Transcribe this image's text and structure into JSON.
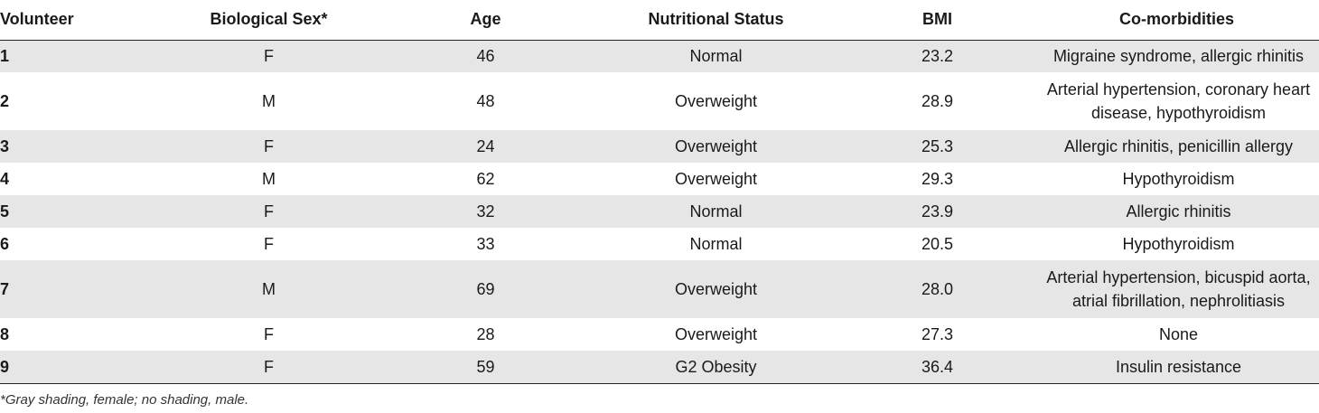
{
  "table": {
    "headers": [
      "Volunteer",
      "Biological Sex*",
      "Age",
      "Nutritional Status",
      "BMI",
      "Co-morbidities"
    ],
    "rows": [
      {
        "volunteer": "1",
        "sex": "F",
        "age": "46",
        "status": "Normal",
        "bmi": "23.2",
        "comorbidities": "Migraine syndrome, allergic rhinitis"
      },
      {
        "volunteer": "2",
        "sex": "M",
        "age": "48",
        "status": "Overweight",
        "bmi": "28.9",
        "comorbidities": "Arterial hypertension, coronary heart disease, hypothyroidism"
      },
      {
        "volunteer": "3",
        "sex": "F",
        "age": "24",
        "status": "Overweight",
        "bmi": "25.3",
        "comorbidities": "Allergic rhinitis, penicillin allergy"
      },
      {
        "volunteer": "4",
        "sex": "M",
        "age": "62",
        "status": "Overweight",
        "bmi": "29.3",
        "comorbidities": "Hypothyroidism"
      },
      {
        "volunteer": "5",
        "sex": "F",
        "age": "32",
        "status": "Normal",
        "bmi": "23.9",
        "comorbidities": "Allergic rhinitis"
      },
      {
        "volunteer": "6",
        "sex": "F",
        "age": "33",
        "status": "Normal",
        "bmi": "20.5",
        "comorbidities": "Hypothyroidism"
      },
      {
        "volunteer": "7",
        "sex": "M",
        "age": "69",
        "status": "Overweight",
        "bmi": "28.0",
        "comorbidities": "Arterial hypertension, bicuspid aorta, atrial fibrillation, nephrolitiasis"
      },
      {
        "volunteer": "8",
        "sex": "F",
        "age": "28",
        "status": "Overweight",
        "bmi": "27.3",
        "comorbidities": "None"
      },
      {
        "volunteer": "9",
        "sex": "F",
        "age": "59",
        "status": "G2 Obesity",
        "bmi": "36.4",
        "comorbidities": "Insulin resistance"
      }
    ],
    "footnote": "*Gray shading, female; no shading, male.",
    "shading_color": "#e6e6e6"
  }
}
